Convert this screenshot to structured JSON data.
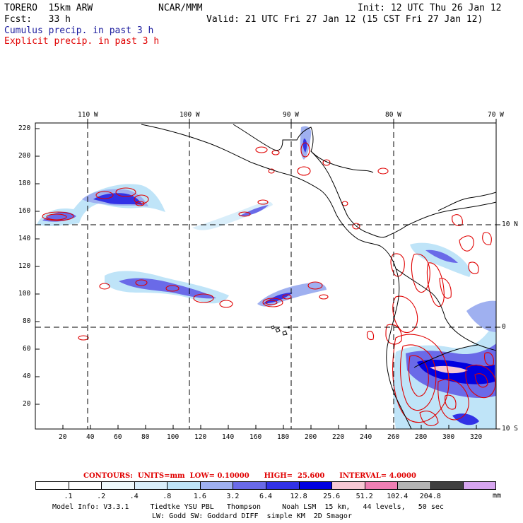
{
  "header": {
    "model": "TORERO  15km ARW",
    "org": "NCAR/MMM",
    "init": "Init: 12 UTC Thu 26 Jan 12",
    "fcst": "Fcst:   33 h",
    "valid": "Valid: 21 UTC Fri 27 Jan 12 (15 CST Fri 27 Jan 12)",
    "line_cumulus": "Cumulus precip. in past 3 h",
    "line_explicit": "Explicit precip. in past 3 h"
  },
  "colors": {
    "cumulus_text": "#1c1c9e",
    "explicit_text": "#e00000"
  },
  "axes": {
    "lon_labels": [
      "110 W",
      "100 W",
      "90 W",
      "80 W",
      "70 W"
    ],
    "lat_labels": [
      "10 N",
      "0",
      "10 S"
    ],
    "y_ticks": [
      "220",
      "200",
      "180",
      "160",
      "140",
      "120",
      "100",
      "80",
      "60",
      "40",
      "20"
    ],
    "x_ticks": [
      "20",
      "40",
      "60",
      "80",
      "100",
      "120",
      "140",
      "160",
      "180",
      "200",
      "220",
      "240",
      "260",
      "280",
      "300",
      "320"
    ]
  },
  "contours_line": {
    "label": "CONTOURS:",
    "units": "UNITS=mm",
    "low": "LOW= 0.10000",
    "high": "HIGH=  25.600",
    "interval": "INTERVAL= 4.0000"
  },
  "colorbar": {
    "labels": [
      ".1",
      ".2",
      ".4",
      ".8",
      "1.6",
      "3.2",
      "6.4",
      "12.8",
      "25.6",
      "51.2",
      "102.4",
      "204.8"
    ],
    "unit": "mm",
    "colors": [
      "#ffffff",
      "#ffffff",
      "#eef8fb",
      "#d9eefa",
      "#bfe4f8",
      "#9fb0f0",
      "#6a6ae8",
      "#3232e6",
      "#0000e0",
      "#f7c8d4",
      "#f07fb4",
      "#b4b4b4",
      "#404040",
      "#d7a6f0"
    ]
  },
  "footer": {
    "line1": "Model Info: V3.3.1     Tiedtke YSU PBL   Thompson     Noah LSM  15 km,   44 levels,   50 sec",
    "line2": "LW: Godd SW: Goddard DIFF  simple KM  2D Smagor"
  }
}
